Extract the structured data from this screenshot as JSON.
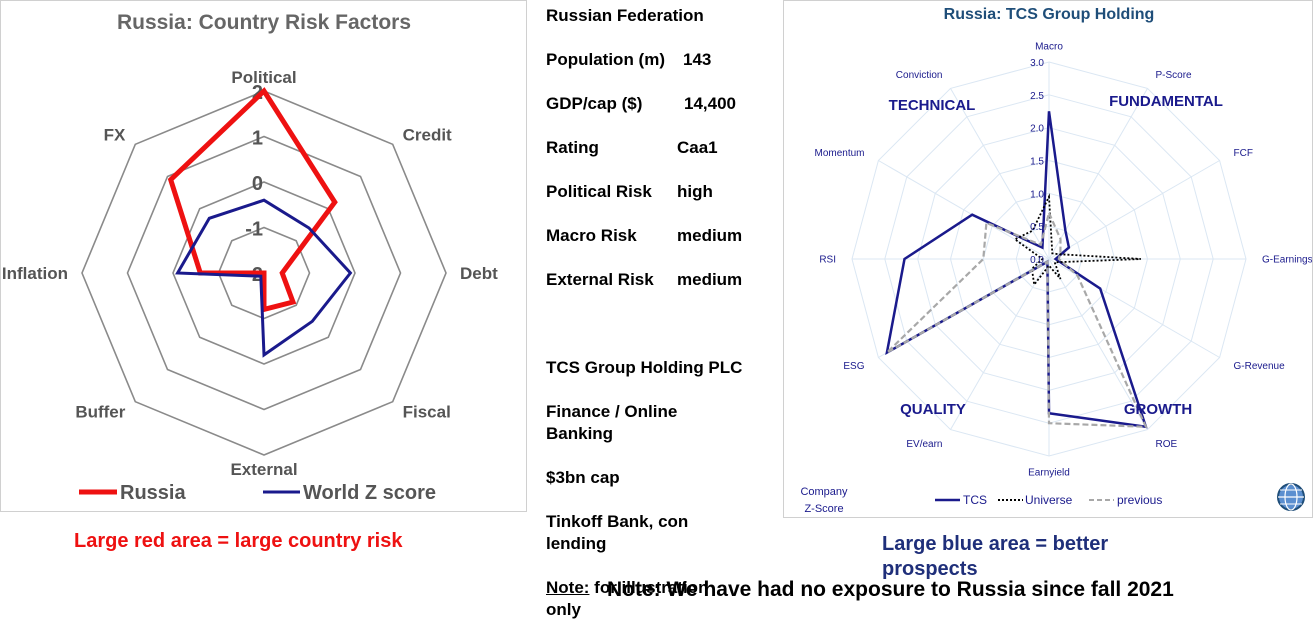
{
  "left_chart": {
    "title": "Russia: Country Risk Factors",
    "legend": [
      {
        "label": "Russia",
        "color": "#ee1111"
      },
      {
        "label": "World Z score",
        "color": "#1a1a8c"
      }
    ]
  },
  "country_info": {
    "name": "Russian Federation",
    "rows": [
      {
        "label": "Population (m)",
        "value": "143"
      },
      {
        "label": "GDP/cap ($)",
        "value": "14,400"
      },
      {
        "label": "Rating",
        "value": "Caa1"
      },
      {
        "label": "Political Risk",
        "value": "high"
      },
      {
        "label": "Macro Risk",
        "value": "medium"
      },
      {
        "label": "External Risk",
        "value": "medium"
      }
    ]
  },
  "company_info": {
    "name": "TCS Group Holding PLC",
    "sector_line1": "Finance / Online",
    "sector_line2": "Banking",
    "cap": "$3bn cap",
    "desc_line1": "Tinkoff Bank, con",
    "desc_line2": "lending",
    "note_label": "Note:",
    "note_text": " for illustration",
    "note_line2": "only"
  },
  "right_chart": {
    "title": "Russia: TCS Group Holding",
    "groups": [
      "TECHNICAL",
      "FUNDAMENTAL",
      "QUALITY",
      "GROWTH"
    ],
    "corner_label_line1": "Company",
    "corner_label_line2": "Z-Score",
    "legend": [
      {
        "label": "TCS",
        "color": "#1a1a8c",
        "style": "solid"
      },
      {
        "label": "Universe",
        "color": "#000000",
        "style": "dotted"
      },
      {
        "label": "previous",
        "color": "#a8a8a8",
        "style": "dashed"
      }
    ]
  },
  "captions": {
    "left": "Large red area = large country risk",
    "right_line1": "Large blue area = better",
    "right_line2": "prospects",
    "bottom": "Note: We have had no exposure to Russia since fall 2021"
  },
  "chart_data": [
    {
      "type": "radar",
      "title": "Russia: Country Risk Factors",
      "categories": [
        "Political",
        "Credit",
        "Debt",
        "Fiscal",
        "External",
        "Buffer",
        "Inflation",
        "FX"
      ],
      "rlim": [
        -2,
        2
      ],
      "tick_labels": [
        "-2",
        "-1",
        "0",
        "1",
        "2"
      ],
      "ticks": [
        -2,
        -1,
        0,
        1,
        2
      ],
      "series": [
        {
          "name": "Russia",
          "color": "#ee1111",
          "values": [
            2.0,
            0.2,
            -1.6,
            -1.1,
            -1.2,
            -2.0,
            -0.6,
            0.9
          ]
        },
        {
          "name": "World Z score",
          "color": "#1a1a8c",
          "values": [
            -0.4,
            -0.6,
            -0.1,
            -0.5,
            -0.2,
            -1.9,
            -0.1,
            -0.3
          ]
        }
      ]
    },
    {
      "type": "radar",
      "title": "Russia: TCS Group Holding",
      "categories": [
        "Macro",
        "P-Score",
        "FCF",
        "G-Earnings",
        "G-Revenue",
        "ROE",
        "Earnyield",
        "EV/earn",
        "ESG",
        "RSI",
        "Momentum",
        "Conviction"
      ],
      "rlim": [
        0,
        3
      ],
      "ticks": [
        0,
        0.5,
        1,
        1.5,
        2,
        2.5,
        3
      ],
      "tick_labels": [
        "0.0",
        "0.5",
        "1.0",
        "1.5",
        "2.0",
        "2.5",
        "3.0"
      ],
      "series": [
        {
          "name": "TCS",
          "color": "#1a1a8c",
          "style": "solid",
          "values": [
            2.25,
            0.5,
            0.35,
            0.1,
            0.9,
            2.95,
            2.35,
            0.05,
            2.85,
            2.2,
            1.35,
            0.2
          ]
        },
        {
          "name": "Universe",
          "color": "#000000",
          "style": "dotted",
          "values": [
            0.95,
            0.1,
            0.15,
            1.4,
            0.1,
            0.35,
            0.1,
            0.45,
            0.3,
            0.1,
            0.6,
            0.5
          ]
        },
        {
          "name": "previous",
          "color": "#a8a8a8",
          "style": "dashed",
          "values": [
            0.7,
            0.35,
            0.2,
            0.15,
            0.5,
            2.95,
            2.5,
            0.05,
            2.85,
            1.0,
            1.1,
            0.25
          ]
        }
      ]
    }
  ]
}
